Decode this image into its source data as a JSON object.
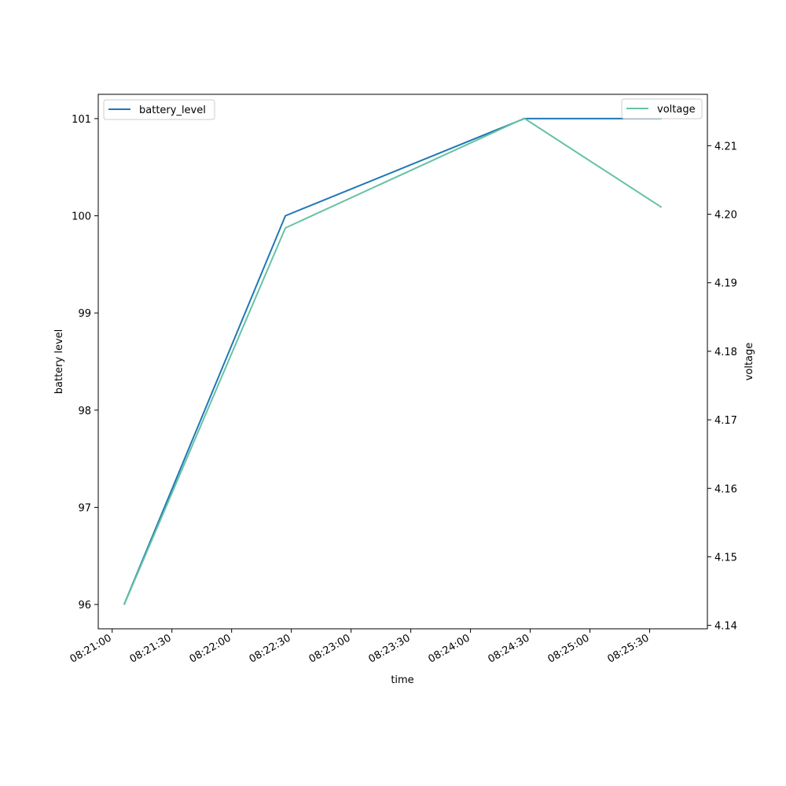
{
  "chart_data": {
    "type": "line",
    "title": "",
    "xlabel": "time",
    "ylabel_left": "battery level",
    "ylabel_right": "voltage",
    "x_ticks": [
      "08:21:00",
      "08:21:30",
      "08:22:00",
      "08:22:30",
      "08:23:00",
      "08:23:30",
      "08:24:00",
      "08:24:30",
      "08:25:00",
      "08:25:30"
    ],
    "left_y_ticks": [
      "96",
      "97",
      "98",
      "99",
      "100",
      "101"
    ],
    "right_y_ticks": [
      "4.14",
      "4.15",
      "4.16",
      "4.17",
      "4.18",
      "4.19",
      "4.20",
      "4.21"
    ],
    "x_range": [
      "08:20:53",
      "08:25:59"
    ],
    "left_ylim": [
      95.75,
      101.25
    ],
    "right_ylim": [
      4.1395,
      4.2175
    ],
    "series": [
      {
        "name": "battery_level",
        "axis": "left",
        "color": "#1f77b4",
        "x": [
          "08:21:06",
          "08:22:27",
          "08:24:27",
          "08:25:36"
        ],
        "y": [
          96,
          100,
          101,
          101
        ]
      },
      {
        "name": "voltage",
        "axis": "right",
        "color": "#66c2a5",
        "x": [
          "08:21:06",
          "08:22:27",
          "08:24:27",
          "08:25:36"
        ],
        "y": [
          4.143,
          4.198,
          4.214,
          4.201
        ]
      }
    ],
    "legend_left": {
      "placement": "top-left",
      "entries": [
        "battery_level"
      ]
    },
    "legend_right": {
      "placement": "top-right",
      "entries": [
        "voltage"
      ]
    },
    "grid": false
  }
}
